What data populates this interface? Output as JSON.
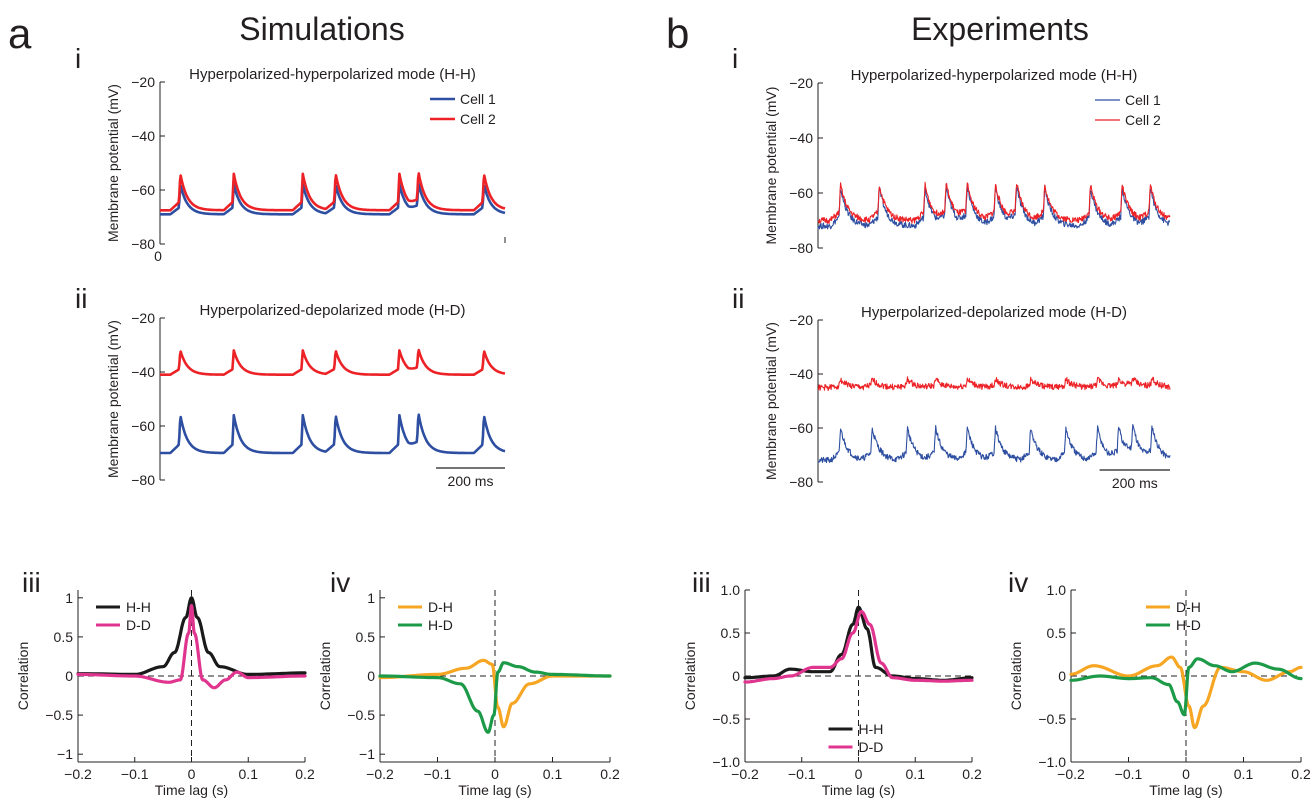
{
  "figure": {
    "panel_a": {
      "letter": "a",
      "title": "Simulations"
    },
    "panel_b": {
      "letter": "b",
      "title": "Experiments"
    },
    "colors": {
      "cell1": "#2e4fa1",
      "cell2": "#ec2227",
      "hh": "#1a1a1a",
      "dd": "#e0358f",
      "dh": "#f6a623",
      "hd": "#1c9a48",
      "axis": "#231f20"
    }
  },
  "chart_data": [
    {
      "id": "a_i",
      "type": "line",
      "panel_label": "i",
      "title": "Hyperpolarized-hyperpolarized mode (H-H)",
      "ylabel": "Membrane potential (mV)",
      "xlabel": "",
      "ylim": [
        -80,
        -20
      ],
      "yticks": [
        "-20",
        "-40",
        "-60",
        "-80"
      ],
      "xlim": [
        0,
        1000
      ],
      "xticks": [
        "0"
      ],
      "legend": [
        "Cell 1",
        "Cell 2"
      ],
      "legend_position": "top-right",
      "series": [
        {
          "name": "Cell 1",
          "baseline": -69,
          "peak": -58,
          "spikes": [
            55,
            210,
            410,
            505,
            690,
            745,
            935
          ]
        },
        {
          "name": "Cell 2",
          "baseline": -67.5,
          "peak": -54,
          "spikes": [
            55,
            210,
            410,
            505,
            690,
            745,
            935
          ]
        }
      ]
    },
    {
      "id": "a_ii",
      "type": "line",
      "panel_label": "ii",
      "title": "Hyperpolarized-depolarized mode (H-D)",
      "ylabel": "Membrane potential (mV)",
      "ylim": [
        -80,
        -20
      ],
      "yticks": [
        "-20",
        "-40",
        "-60",
        "-80"
      ],
      "xlim": [
        0,
        1000
      ],
      "scalebar_label": "200 ms",
      "series": [
        {
          "name": "Cell 1",
          "baseline": -70,
          "peak": -56,
          "spikes": [
            55,
            210,
            410,
            505,
            690,
            745,
            935
          ]
        },
        {
          "name": "Cell 2",
          "baseline": -41,
          "peak": -32,
          "spikes": [
            55,
            210,
            410,
            505,
            690,
            745,
            935
          ]
        }
      ]
    },
    {
      "id": "b_i",
      "type": "line",
      "panel_label": "i",
      "title": "Hyperpolarized-hyperpolarized mode (H-H)",
      "ylabel": "Membrane potential (mV)",
      "ylim": [
        -80,
        -20
      ],
      "yticks": [
        "-20",
        "-40",
        "-60",
        "-80"
      ],
      "xlim": [
        0,
        1000
      ],
      "legend": [
        "Cell 1",
        "Cell 2"
      ],
      "legend_position": "top-right",
      "series": [
        {
          "name": "Cell 1",
          "baseline": -72,
          "peak": -58,
          "spikes": [
            60,
            170,
            300,
            360,
            420,
            500,
            560,
            640,
            770,
            860,
            940
          ]
        },
        {
          "name": "Cell 2",
          "baseline": -70,
          "peak": -57,
          "spikes": [
            60,
            170,
            300,
            360,
            420,
            500,
            560,
            640,
            770,
            860,
            940
          ]
        }
      ]
    },
    {
      "id": "b_ii",
      "type": "line",
      "panel_label": "ii",
      "title": "Hyperpolarized-depolarized mode (H-D)",
      "ylabel": "Membrane potential (mV)",
      "ylim": [
        -80,
        -20
      ],
      "yticks": [
        "-20",
        "-40",
        "-60",
        "-80"
      ],
      "xlim": [
        0,
        1000
      ],
      "scalebar_label": "200 ms",
      "series": [
        {
          "name": "Cell 1",
          "baseline": -72,
          "peak": -60,
          "spikes": [
            60,
            150,
            250,
            330,
            420,
            500,
            600,
            700,
            790,
            850,
            890,
            945
          ]
        },
        {
          "name": "Cell 2",
          "baseline": -45,
          "peak": -42,
          "spikes": [
            60,
            150,
            250,
            330,
            420,
            500,
            600,
            700,
            790,
            850,
            890,
            945
          ]
        }
      ]
    },
    {
      "id": "a_iii",
      "type": "line",
      "panel_label": "iii",
      "xlabel": "Time lag (s)",
      "ylabel": "Correlation",
      "xlim": [
        -0.2,
        0.2
      ],
      "ylim": [
        -1.1,
        1.1
      ],
      "xticks": [
        "-0.2",
        "-0.1",
        "0",
        "0.1",
        "0.2"
      ],
      "yticks": [
        "1",
        "0.5",
        "0",
        "-0.5",
        "-1"
      ],
      "legend": [
        "H-H",
        "D-D"
      ],
      "legend_position": "top-left",
      "series": [
        {
          "name": "H-H",
          "x": [
            -0.2,
            -0.1,
            -0.05,
            -0.03,
            -0.01,
            0,
            0.01,
            0.03,
            0.05,
            0.1,
            0.2
          ],
          "y": [
            0.03,
            0.02,
            0.12,
            0.3,
            0.75,
            1.0,
            0.75,
            0.3,
            0.12,
            0.02,
            0.04
          ]
        },
        {
          "name": "D-D",
          "x": [
            -0.2,
            -0.1,
            -0.04,
            -0.02,
            -0.005,
            0,
            0.005,
            0.02,
            0.04,
            0.06,
            0.08,
            0.1,
            0.2
          ],
          "y": [
            0.02,
            0.0,
            -0.08,
            -0.05,
            0.55,
            0.9,
            0.55,
            -0.05,
            -0.15,
            -0.05,
            0.05,
            -0.02,
            0.0
          ]
        }
      ]
    },
    {
      "id": "a_iv",
      "type": "line",
      "panel_label": "iv",
      "xlabel": "Time lag (s)",
      "ylabel": "Correlation",
      "xlim": [
        -0.2,
        0.2
      ],
      "ylim": [
        -1.1,
        1.1
      ],
      "xticks": [
        "-0.2",
        "-0.1",
        "0",
        "0.1",
        "0.2"
      ],
      "yticks": [
        "1",
        "0.5",
        "0",
        "-0.5",
        "-1"
      ],
      "legend": [
        "D-H",
        "H-D"
      ],
      "legend_position": "top-left",
      "series": [
        {
          "name": "D-H",
          "x": [
            -0.2,
            -0.1,
            -0.05,
            -0.02,
            -0.005,
            0.005,
            0.015,
            0.03,
            0.06,
            0.1,
            0.2
          ],
          "y": [
            -0.02,
            0.02,
            0.1,
            0.2,
            0.15,
            -0.4,
            -0.65,
            -0.35,
            -0.1,
            0.0,
            0.0
          ]
        },
        {
          "name": "H-D",
          "x": [
            -0.2,
            -0.1,
            -0.06,
            -0.03,
            -0.012,
            -0.002,
            0.005,
            0.015,
            0.04,
            0.07,
            0.1,
            0.2
          ],
          "y": [
            0.0,
            -0.02,
            -0.1,
            -0.45,
            -0.72,
            -0.5,
            0.05,
            0.17,
            0.12,
            0.05,
            0.02,
            0.0
          ]
        }
      ]
    },
    {
      "id": "b_iii",
      "type": "line",
      "panel_label": "iii",
      "xlabel": "Time lag (s)",
      "ylabel": "Correlation",
      "xlim": [
        -0.2,
        0.2
      ],
      "ylim": [
        -1.0,
        1.0
      ],
      "xticks": [
        "-0.2",
        "-0.1",
        "0",
        "0.1",
        "0.2"
      ],
      "yticks": [
        "1.0",
        "0.5",
        "0",
        "-0.5",
        "-1.0"
      ],
      "legend": [
        "H-H",
        "D-D"
      ],
      "legend_position": "bottom-center",
      "series": [
        {
          "name": "H-H",
          "x": [
            -0.2,
            -0.15,
            -0.12,
            -0.08,
            -0.05,
            -0.03,
            -0.01,
            0,
            0.015,
            0.03,
            0.06,
            0.1,
            0.15,
            0.2
          ],
          "y": [
            -0.02,
            0.0,
            0.08,
            0.05,
            0.05,
            0.25,
            0.6,
            0.8,
            0.55,
            0.1,
            0.0,
            -0.03,
            -0.05,
            -0.02
          ]
        },
        {
          "name": "D-D",
          "x": [
            -0.2,
            -0.15,
            -0.12,
            -0.08,
            -0.05,
            -0.03,
            -0.01,
            0.005,
            0.02,
            0.04,
            0.06,
            0.1,
            0.15,
            0.2
          ],
          "y": [
            -0.07,
            -0.03,
            0.0,
            0.1,
            0.1,
            0.2,
            0.5,
            0.75,
            0.6,
            0.15,
            -0.02,
            -0.05,
            -0.06,
            -0.05
          ]
        }
      ]
    },
    {
      "id": "b_iv",
      "type": "line",
      "panel_label": "iv",
      "xlabel": "Time lag (s)",
      "ylabel": "Correlation",
      "xlim": [
        -0.2,
        0.2
      ],
      "ylim": [
        -1.0,
        1.0
      ],
      "xticks": [
        "-0.2",
        "-0.1",
        "0",
        "0.1",
        "0.2"
      ],
      "yticks": [
        "1.0",
        "0.5",
        "0",
        "-0.5",
        "-1.0"
      ],
      "legend": [
        "D-H",
        "H-D"
      ],
      "legend_position": "top-center",
      "series": [
        {
          "name": "D-H",
          "x": [
            -0.2,
            -0.16,
            -0.1,
            -0.05,
            -0.025,
            -0.01,
            0.005,
            0.015,
            0.03,
            0.06,
            0.1,
            0.14,
            0.18,
            0.2
          ],
          "y": [
            0.02,
            0.12,
            0.0,
            0.12,
            0.22,
            0.1,
            -0.35,
            -0.6,
            -0.35,
            0.1,
            0.05,
            -0.05,
            0.05,
            0.1
          ]
        },
        {
          "name": "H-D",
          "x": [
            -0.2,
            -0.15,
            -0.1,
            -0.06,
            -0.03,
            -0.015,
            -0.003,
            0.005,
            0.02,
            0.05,
            0.08,
            0.12,
            0.16,
            0.2
          ],
          "y": [
            -0.05,
            0.0,
            -0.03,
            -0.02,
            -0.1,
            -0.3,
            -0.45,
            0.1,
            0.2,
            0.12,
            0.05,
            0.15,
            0.08,
            -0.03
          ]
        }
      ]
    }
  ]
}
